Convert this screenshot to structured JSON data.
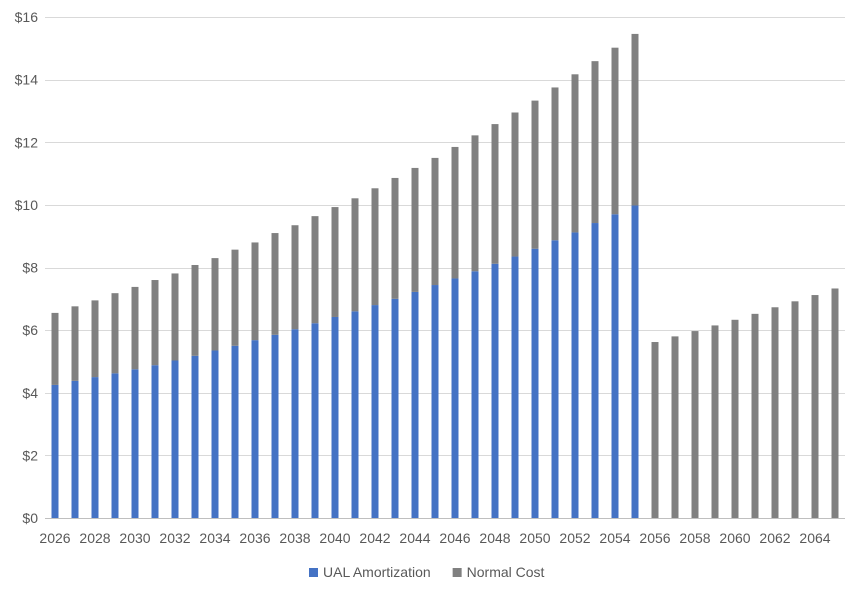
{
  "chart_data": {
    "type": "bar",
    "stacked": true,
    "title": "",
    "xlabel": "",
    "ylabel": "",
    "ylim": [
      0,
      16
    ],
    "y_ticks": [
      0,
      2,
      4,
      6,
      8,
      10,
      12,
      14,
      16
    ],
    "y_tick_labels": [
      "$0",
      "$2",
      "$4",
      "$6",
      "$8",
      "$10",
      "$12",
      "$14",
      "$16"
    ],
    "grid": true,
    "legend_position": "bottom",
    "categories": [
      2026,
      2027,
      2028,
      2029,
      2030,
      2031,
      2032,
      2033,
      2034,
      2035,
      2036,
      2037,
      2038,
      2039,
      2040,
      2041,
      2042,
      2043,
      2044,
      2045,
      2046,
      2047,
      2048,
      2049,
      2050,
      2051,
      2052,
      2053,
      2054,
      2055,
      2056,
      2057,
      2058,
      2059,
      2060,
      2061,
      2062,
      2063,
      2064,
      2065
    ],
    "x_tick_labels": [
      "2026",
      "2028",
      "2030",
      "2032",
      "2034",
      "2036",
      "2038",
      "2040",
      "2042",
      "2044",
      "2046",
      "2048",
      "2050",
      "2052",
      "2054",
      "2056",
      "2058",
      "2060",
      "2062",
      "2064"
    ],
    "series": [
      {
        "name": "UAL Amortization",
        "color": "#4472C4",
        "values": [
          4.25,
          4.38,
          4.5,
          4.62,
          4.75,
          4.88,
          5.03,
          5.18,
          5.35,
          5.5,
          5.68,
          5.85,
          6.03,
          6.22,
          6.42,
          6.6,
          6.8,
          7.0,
          7.22,
          7.44,
          7.65,
          7.88,
          8.12,
          8.35,
          8.6,
          8.87,
          9.12,
          9.42,
          9.7,
          9.98,
          0,
          0,
          0,
          0,
          0,
          0,
          0,
          0,
          0,
          0
        ]
      },
      {
        "name": "Normal Cost",
        "color": "#808080",
        "values": [
          2.3,
          2.38,
          2.45,
          2.56,
          2.63,
          2.72,
          2.78,
          2.9,
          2.95,
          3.07,
          3.12,
          3.25,
          3.32,
          3.42,
          3.51,
          3.61,
          3.73,
          3.86,
          3.96,
          4.06,
          4.2,
          4.34,
          4.46,
          4.6,
          4.73,
          4.88,
          5.05,
          5.17,
          5.32,
          5.48,
          5.62,
          5.8,
          5.97,
          6.15,
          6.33,
          6.52,
          6.73,
          6.92,
          7.12,
          7.33
        ]
      }
    ]
  }
}
